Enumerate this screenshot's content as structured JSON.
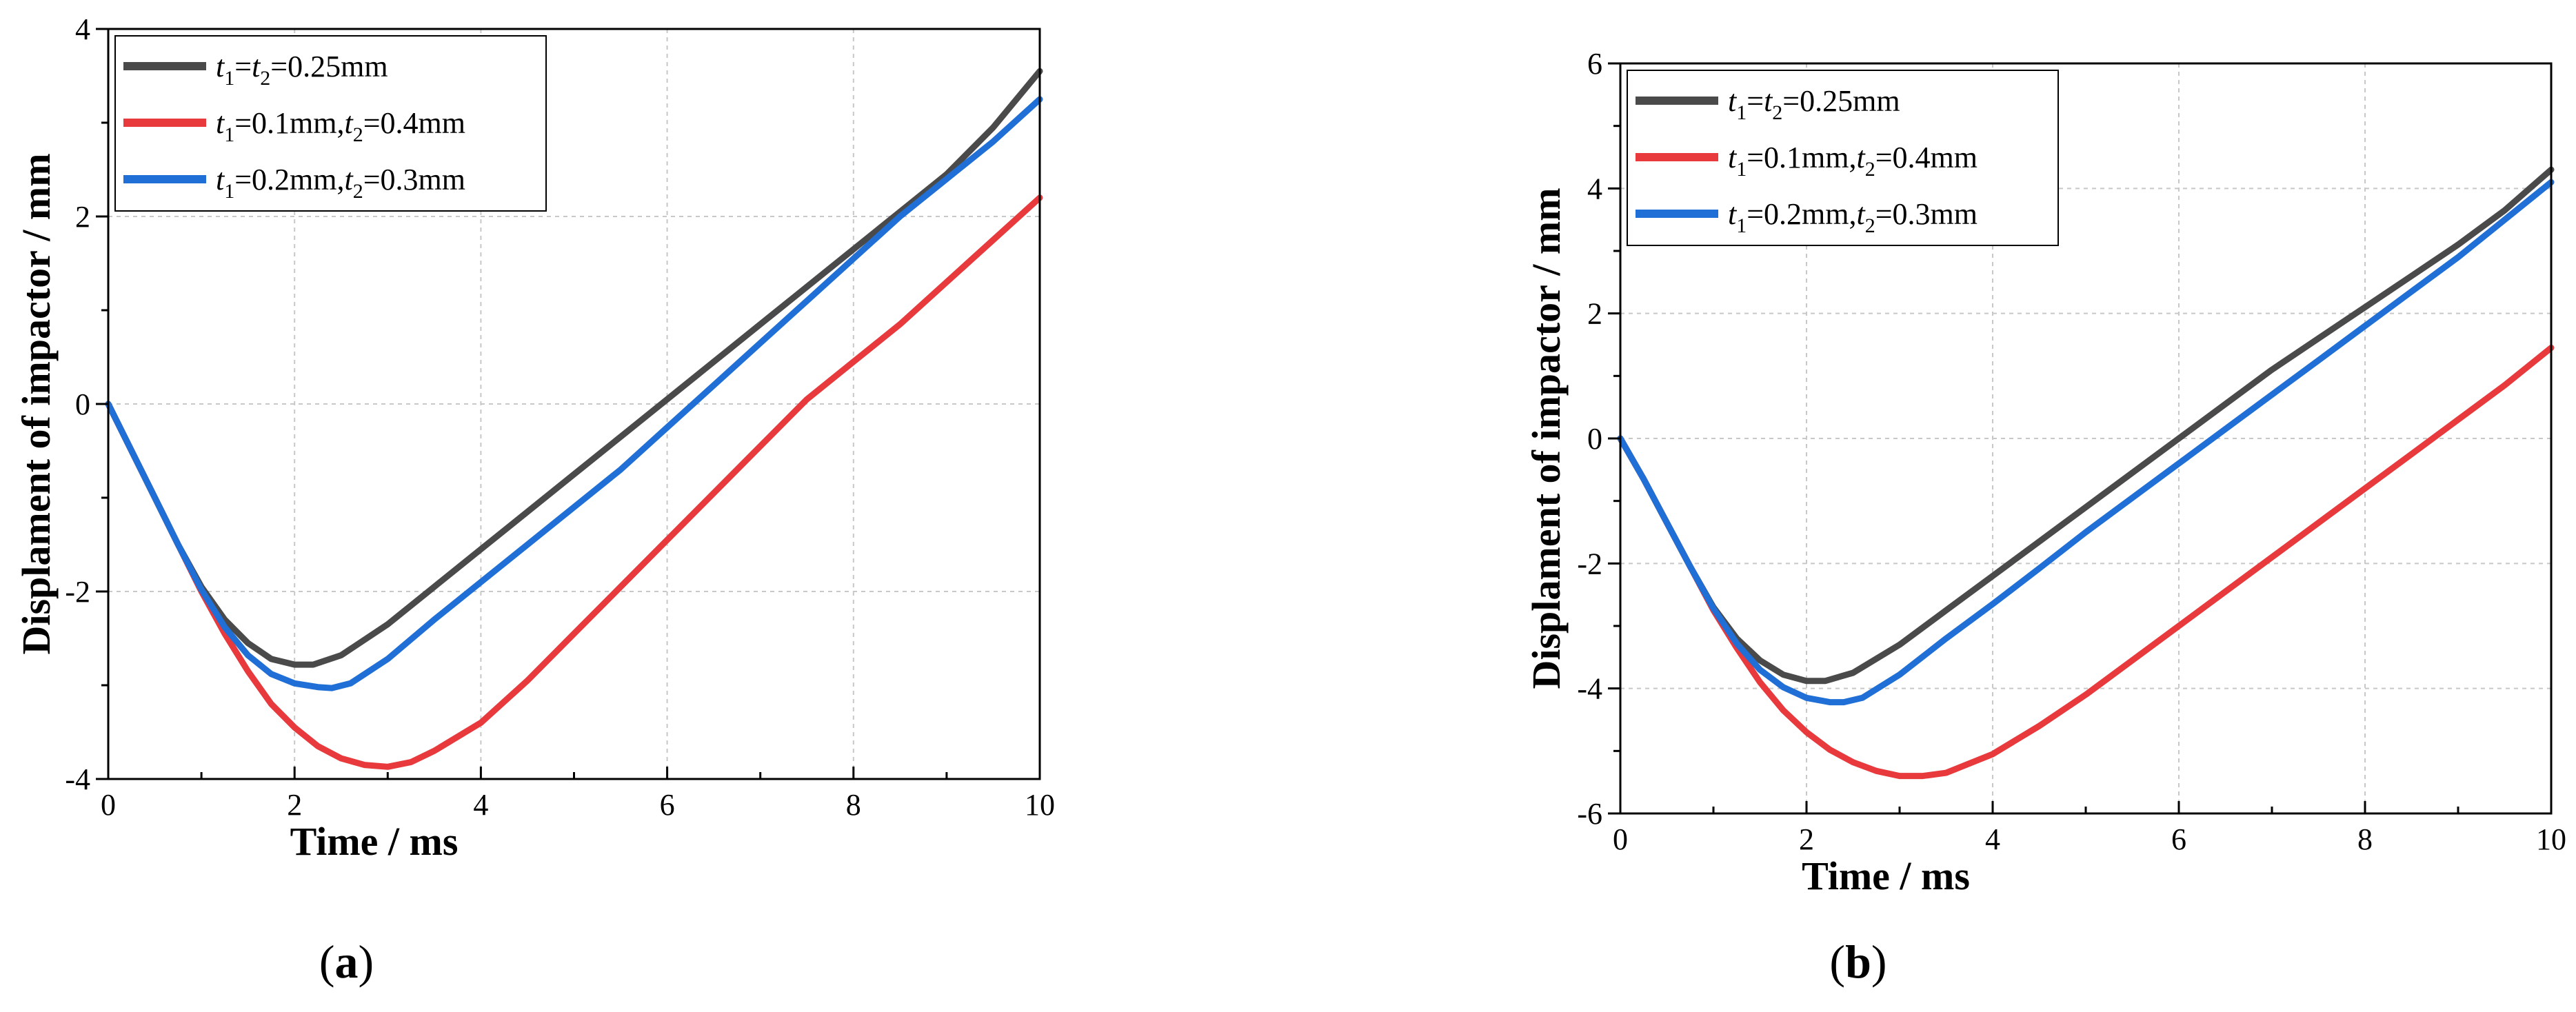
{
  "colors": {
    "series": [
      "#4a4a4a",
      "#e8393d",
      "#1f6fd6"
    ],
    "grid": "#c8c8c8"
  },
  "chart_data": [
    {
      "type": "line",
      "caption": "a",
      "xlabel": "Time / ms",
      "ylabel": "Displament of impactor / mm",
      "xlim": [
        0,
        10
      ],
      "ylim": [
        -4,
        4
      ],
      "xticks": [
        0,
        2,
        4,
        6,
        8,
        10
      ],
      "yticks": [
        -4,
        -2,
        0,
        2,
        4
      ],
      "grid": true,
      "legend_position": "top-left",
      "series": [
        {
          "legend": {
            "parts": [
              [
                "i",
                "t"
              ],
              [
                "sub",
                "1"
              ],
              [
                "n",
                "="
              ],
              [
                "i",
                "t"
              ],
              [
                "sub",
                "2"
              ],
              [
                "n",
                "=0.25mm"
              ]
            ]
          },
          "x": [
            0,
            0.25,
            0.5,
            0.75,
            1.0,
            1.25,
            1.5,
            1.75,
            2.0,
            2.2,
            2.5,
            3.0,
            3.5,
            4.0,
            4.5,
            5.0,
            5.5,
            6.0,
            6.5,
            7.0,
            7.5,
            8.0,
            8.5,
            9.0,
            9.5,
            10.0
          ],
          "y": [
            0,
            -0.5,
            -1.0,
            -1.5,
            -1.95,
            -2.3,
            -2.55,
            -2.72,
            -2.78,
            -2.78,
            -2.68,
            -2.35,
            -1.95,
            -1.55,
            -1.15,
            -0.75,
            -0.35,
            0.05,
            0.45,
            0.85,
            1.25,
            1.65,
            2.05,
            2.45,
            2.95,
            3.55
          ]
        },
        {
          "legend": {
            "parts": [
              [
                "i",
                "t"
              ],
              [
                "sub",
                "1"
              ],
              [
                "n",
                "=0.1mm,"
              ],
              [
                "i",
                "t"
              ],
              [
                "sub",
                "2"
              ],
              [
                "n",
                "=0.4mm"
              ]
            ]
          },
          "x": [
            0,
            0.25,
            0.5,
            0.75,
            1.0,
            1.25,
            1.5,
            1.75,
            2.0,
            2.25,
            2.5,
            2.75,
            3.0,
            3.25,
            3.5,
            4.0,
            4.5,
            5.0,
            5.5,
            6.0,
            6.5,
            7.0,
            7.5,
            8.0,
            8.5,
            9.0,
            9.5,
            10.0
          ],
          "y": [
            0,
            -0.5,
            -1.0,
            -1.5,
            -2.0,
            -2.45,
            -2.85,
            -3.2,
            -3.45,
            -3.65,
            -3.78,
            -3.85,
            -3.87,
            -3.82,
            -3.7,
            -3.4,
            -2.95,
            -2.45,
            -1.95,
            -1.45,
            -0.95,
            -0.45,
            0.05,
            0.45,
            0.85,
            1.3,
            1.75,
            2.2
          ]
        },
        {
          "legend": {
            "parts": [
              [
                "i",
                "t"
              ],
              [
                "sub",
                "1"
              ],
              [
                "n",
                "=0.2mm,"
              ],
              [
                "i",
                "t"
              ],
              [
                "sub",
                "2"
              ],
              [
                "n",
                "=0.3mm"
              ]
            ]
          },
          "x": [
            0,
            0.25,
            0.5,
            0.75,
            1.0,
            1.25,
            1.5,
            1.75,
            2.0,
            2.25,
            2.4,
            2.6,
            3.0,
            3.5,
            4.0,
            4.5,
            5.0,
            5.5,
            6.0,
            6.5,
            7.0,
            7.5,
            8.0,
            8.5,
            9.0,
            9.5,
            10.0
          ],
          "y": [
            0,
            -0.5,
            -1.0,
            -1.5,
            -1.98,
            -2.38,
            -2.68,
            -2.88,
            -2.98,
            -3.02,
            -3.03,
            -2.98,
            -2.72,
            -2.3,
            -1.9,
            -1.5,
            -1.1,
            -0.7,
            -0.25,
            0.2,
            0.65,
            1.1,
            1.55,
            2.0,
            2.4,
            2.8,
            3.25
          ]
        }
      ]
    },
    {
      "type": "line",
      "caption": "b",
      "xlabel": "Time / ms",
      "ylabel": "Displament of impactor / mm",
      "xlim": [
        0,
        10
      ],
      "ylim": [
        -6,
        6
      ],
      "xticks": [
        0,
        2,
        4,
        6,
        8,
        10
      ],
      "yticks": [
        -6,
        -4,
        -2,
        0,
        2,
        4,
        6
      ],
      "grid": true,
      "legend_position": "top-left",
      "series": [
        {
          "legend": {
            "parts": [
              [
                "i",
                "t"
              ],
              [
                "sub",
                "1"
              ],
              [
                "n",
                "="
              ],
              [
                "i",
                "t"
              ],
              [
                "sub",
                "2"
              ],
              [
                "n",
                "=0.25mm"
              ]
            ]
          },
          "x": [
            0,
            0.25,
            0.5,
            0.75,
            1.0,
            1.25,
            1.5,
            1.75,
            2.0,
            2.2,
            2.5,
            3.0,
            3.5,
            4.0,
            4.5,
            5.0,
            5.5,
            6.0,
            6.5,
            7.0,
            7.5,
            8.0,
            8.5,
            9.0,
            9.5,
            10.0
          ],
          "y": [
            0,
            -0.65,
            -1.35,
            -2.05,
            -2.7,
            -3.2,
            -3.55,
            -3.78,
            -3.88,
            -3.88,
            -3.75,
            -3.3,
            -2.75,
            -2.2,
            -1.65,
            -1.1,
            -0.55,
            0.0,
            0.55,
            1.1,
            1.6,
            2.1,
            2.6,
            3.1,
            3.65,
            4.3
          ]
        },
        {
          "legend": {
            "parts": [
              [
                "i",
                "t"
              ],
              [
                "sub",
                "1"
              ],
              [
                "n",
                "=0.1mm,"
              ],
              [
                "i",
                "t"
              ],
              [
                "sub",
                "2"
              ],
              [
                "n",
                "=0.4mm"
              ]
            ]
          },
          "x": [
            0,
            0.25,
            0.5,
            0.75,
            1.0,
            1.25,
            1.5,
            1.75,
            2.0,
            2.25,
            2.5,
            2.75,
            3.0,
            3.25,
            3.5,
            4.0,
            4.5,
            5.0,
            5.5,
            6.0,
            6.5,
            7.0,
            7.5,
            8.0,
            8.5,
            9.0,
            9.5,
            10.0
          ],
          "y": [
            0,
            -0.65,
            -1.35,
            -2.05,
            -2.75,
            -3.35,
            -3.9,
            -4.35,
            -4.7,
            -4.98,
            -5.18,
            -5.32,
            -5.4,
            -5.4,
            -5.35,
            -5.05,
            -4.6,
            -4.1,
            -3.55,
            -3.0,
            -2.45,
            -1.9,
            -1.35,
            -0.8,
            -0.25,
            0.3,
            0.85,
            1.45
          ]
        },
        {
          "legend": {
            "parts": [
              [
                "i",
                "t"
              ],
              [
                "sub",
                "1"
              ],
              [
                "n",
                "=0.2mm,"
              ],
              [
                "i",
                "t"
              ],
              [
                "sub",
                "2"
              ],
              [
                "n",
                "=0.3mm"
              ]
            ]
          },
          "x": [
            0,
            0.25,
            0.5,
            0.75,
            1.0,
            1.25,
            1.5,
            1.75,
            2.0,
            2.25,
            2.4,
            2.6,
            3.0,
            3.5,
            4.0,
            4.5,
            5.0,
            5.5,
            6.0,
            6.5,
            7.0,
            7.5,
            8.0,
            8.5,
            9.0,
            9.5,
            10.0
          ],
          "y": [
            0,
            -0.65,
            -1.35,
            -2.05,
            -2.72,
            -3.28,
            -3.7,
            -3.98,
            -4.15,
            -4.22,
            -4.22,
            -4.15,
            -3.78,
            -3.2,
            -2.65,
            -2.08,
            -1.5,
            -0.95,
            -0.4,
            0.15,
            0.7,
            1.25,
            1.8,
            2.35,
            2.9,
            3.5,
            4.1
          ]
        }
      ]
    }
  ]
}
